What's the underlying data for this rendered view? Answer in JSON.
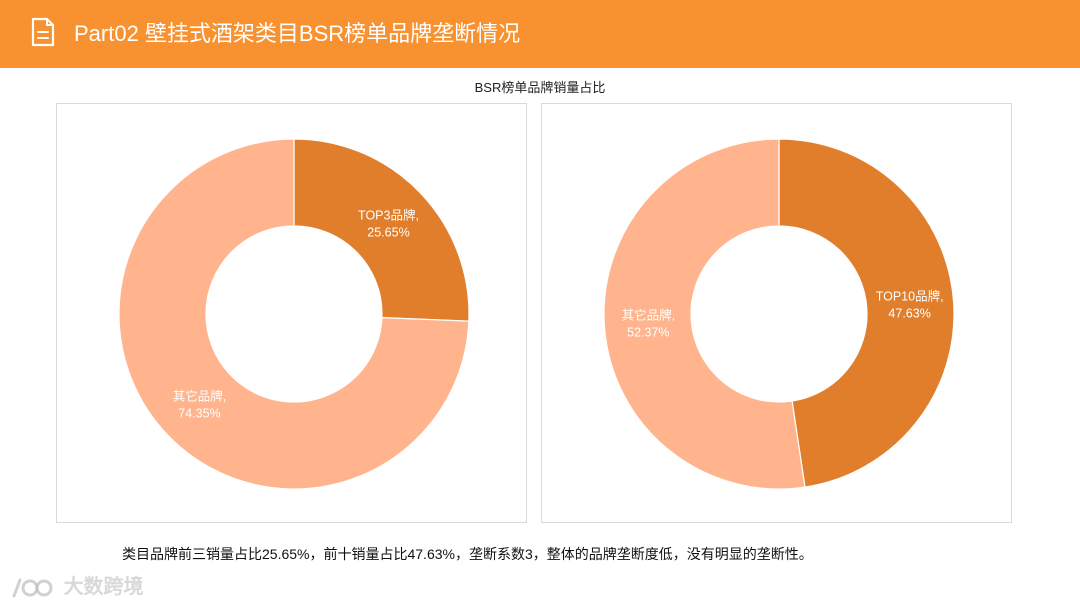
{
  "header": {
    "title": "Part02 壁挂式酒架类目BSR榜单品牌垄断情况",
    "accent": "#f8912f"
  },
  "subtitle": "BSR榜单品牌销量占比",
  "colors": {
    "dark": "#e07e2c",
    "light": "#ffb48d"
  },
  "chart_data": [
    {
      "type": "pie",
      "donut": true,
      "slices": [
        {
          "label": "TOP3品牌",
          "value": 25.65,
          "display": "25.65%",
          "color": "#e07e2c"
        },
        {
          "label": "其它品牌",
          "value": 74.35,
          "display": "74.35%",
          "color": "#ffb48d"
        }
      ]
    },
    {
      "type": "pie",
      "donut": true,
      "slices": [
        {
          "label": "TOP10品牌",
          "value": 47.63,
          "display": "47.63%",
          "color": "#e07e2c"
        },
        {
          "label": "其它品牌",
          "value": 52.37,
          "display": "52.37%",
          "color": "#ffb48d"
        }
      ]
    }
  ],
  "footnote": "类目品牌前三销量占比25.65%，前十销量占比47.63%，垄断系数3，整体的品牌垄断度低，没有明显的垄断性。",
  "watermark": "大数跨境"
}
